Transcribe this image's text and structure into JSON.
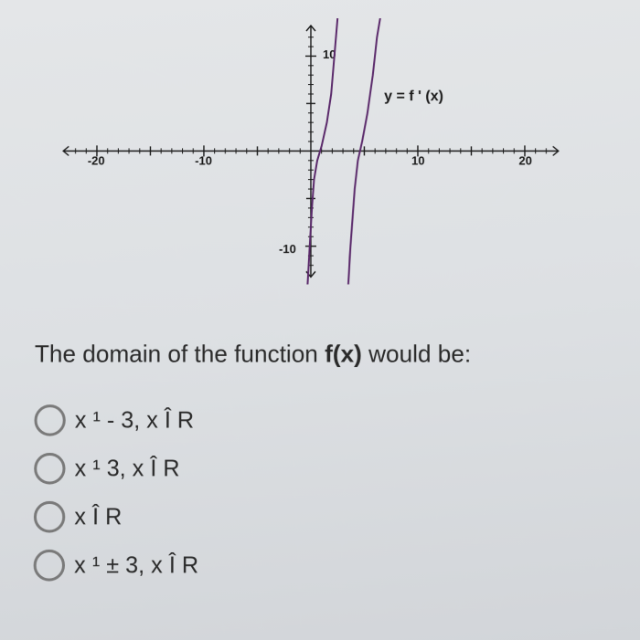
{
  "chart": {
    "type": "line",
    "xlim": [
      -24,
      24
    ],
    "ylim": [
      -14,
      14
    ],
    "xticks": [
      -20,
      -10,
      10,
      20
    ],
    "yticks_pos": [
      10
    ],
    "yticks_neg": [
      -10
    ],
    "axis_color": "#1a1a1a",
    "tick_color": "#1a1a1a",
    "curve_color": "#5b2a6b",
    "curve_width": 2,
    "background_color": "transparent",
    "function_label": "y = f ' (x)",
    "label_fontsize": 14,
    "tick_fontsize": 13,
    "tick_label_neg20": "-20",
    "tick_label_neg10": "-10",
    "tick_label_pos10": "10",
    "tick_label_pos20": "20",
    "tick_label_ypos10": "10",
    "tick_label_yneg10": "-10",
    "asymptote_x": 3,
    "curve_left": [
      [
        -0.3,
        -14
      ],
      [
        -0.1,
        -10
      ],
      [
        0.1,
        -6
      ],
      [
        0.3,
        -3
      ],
      [
        0.6,
        -1
      ],
      [
        1.0,
        0.5
      ],
      [
        1.5,
        3
      ],
      [
        1.9,
        6
      ],
      [
        2.2,
        10
      ],
      [
        2.5,
        14
      ]
    ],
    "curve_right": [
      [
        3.5,
        -14
      ],
      [
        3.7,
        -10
      ],
      [
        3.9,
        -7
      ],
      [
        4.1,
        -4
      ],
      [
        4.4,
        -1
      ],
      [
        4.8,
        1
      ],
      [
        5.3,
        4
      ],
      [
        5.8,
        8
      ],
      [
        6.2,
        12
      ],
      [
        6.5,
        14
      ]
    ]
  },
  "question_prefix": "The domain of the function ",
  "question_fx": "f(x)",
  "question_suffix": " would be:",
  "options": [
    {
      "text": "x ¹ - 3, x Î R"
    },
    {
      "text": "x ¹ 3, x Î R"
    },
    {
      "text": "x Î R"
    },
    {
      "text": "x ¹ ± 3, x Î R"
    }
  ],
  "colors": {
    "page_bg": "#d8dadd",
    "text": "#2a2a2a",
    "radio_border": "#7a7a7a"
  }
}
